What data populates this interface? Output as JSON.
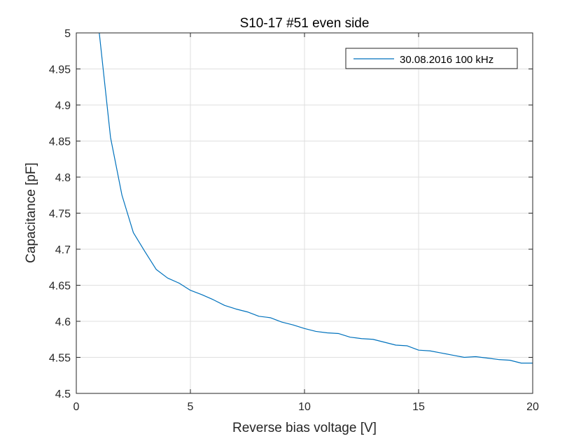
{
  "chart_data": {
    "type": "line",
    "title": "S10-17 #51 even side",
    "xlabel": "Reverse bias voltage [V]",
    "ylabel": "Capacitance [pF]",
    "xlim": [
      0,
      20
    ],
    "ylim": [
      4.5,
      5
    ],
    "xticks": [
      0,
      5,
      10,
      15,
      20
    ],
    "xtick_labels": [
      "0",
      "5",
      "10",
      "15",
      "20"
    ],
    "yticks": [
      4.5,
      4.55,
      4.6,
      4.65,
      4.7,
      4.75,
      4.8,
      4.85,
      4.9,
      4.95,
      5
    ],
    "ytick_labels": [
      "4.5",
      "4.55",
      "4.6",
      "4.65",
      "4.7",
      "4.75",
      "4.8",
      "4.85",
      "4.9",
      "4.95",
      "5"
    ],
    "grid": true,
    "legend_position": "top-right",
    "series": [
      {
        "name": "30.08.2016 100 kHz",
        "color": "#0072bd",
        "x": [
          1,
          1.5,
          2,
          2.5,
          3,
          3.5,
          4,
          4.5,
          5,
          5.5,
          6,
          6.5,
          7,
          7.5,
          8,
          8.5,
          9,
          9.5,
          10,
          10.5,
          11,
          11.5,
          12,
          12.5,
          13,
          13.5,
          14,
          14.5,
          15,
          15.5,
          16,
          16.5,
          17,
          17.5,
          18,
          18.5,
          19,
          19.5,
          20
        ],
        "y": [
          5.002,
          4.855,
          4.775,
          4.723,
          4.697,
          4.672,
          4.66,
          4.653,
          4.643,
          4.637,
          4.63,
          4.622,
          4.617,
          4.613,
          4.607,
          4.605,
          4.599,
          4.595,
          4.59,
          4.586,
          4.584,
          4.583,
          4.578,
          4.576,
          4.575,
          4.571,
          4.567,
          4.566,
          4.56,
          4.559,
          4.556,
          4.553,
          4.55,
          4.551,
          4.549,
          4.547,
          4.546,
          4.542,
          4.542
        ]
      }
    ]
  }
}
